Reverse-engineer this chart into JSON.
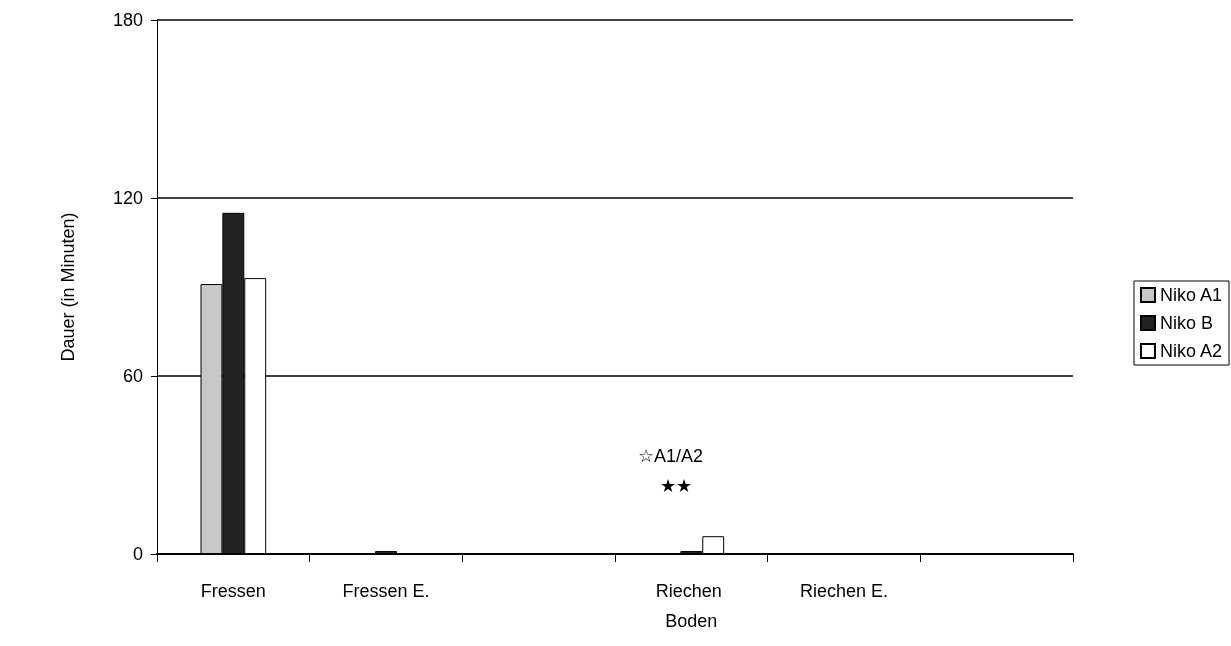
{
  "chart_data": {
    "type": "bar",
    "ylabel": "Dauer (in Minuten)",
    "categories": [
      "Fressen",
      "Fressen E.",
      null,
      "Riechen Boden",
      "Riechen E.",
      null
    ],
    "series": [
      {
        "name": "Niko A1",
        "color": "#c8c8c8",
        "values": [
          91,
          0,
          0,
          0,
          0,
          0
        ]
      },
      {
        "name": "Niko B",
        "color": "#222222",
        "values": [
          115,
          1,
          0,
          1,
          0,
          0
        ]
      },
      {
        "name": "Niko A2",
        "color": "#ffffff",
        "values": [
          93,
          0,
          0,
          6,
          0,
          0
        ]
      }
    ],
    "ylim": [
      0,
      180
    ],
    "yticks": [
      0,
      60,
      120,
      180
    ],
    "grid": "y",
    "legend": "right",
    "annotations": [
      "☆A1/A2",
      "★★"
    ]
  }
}
